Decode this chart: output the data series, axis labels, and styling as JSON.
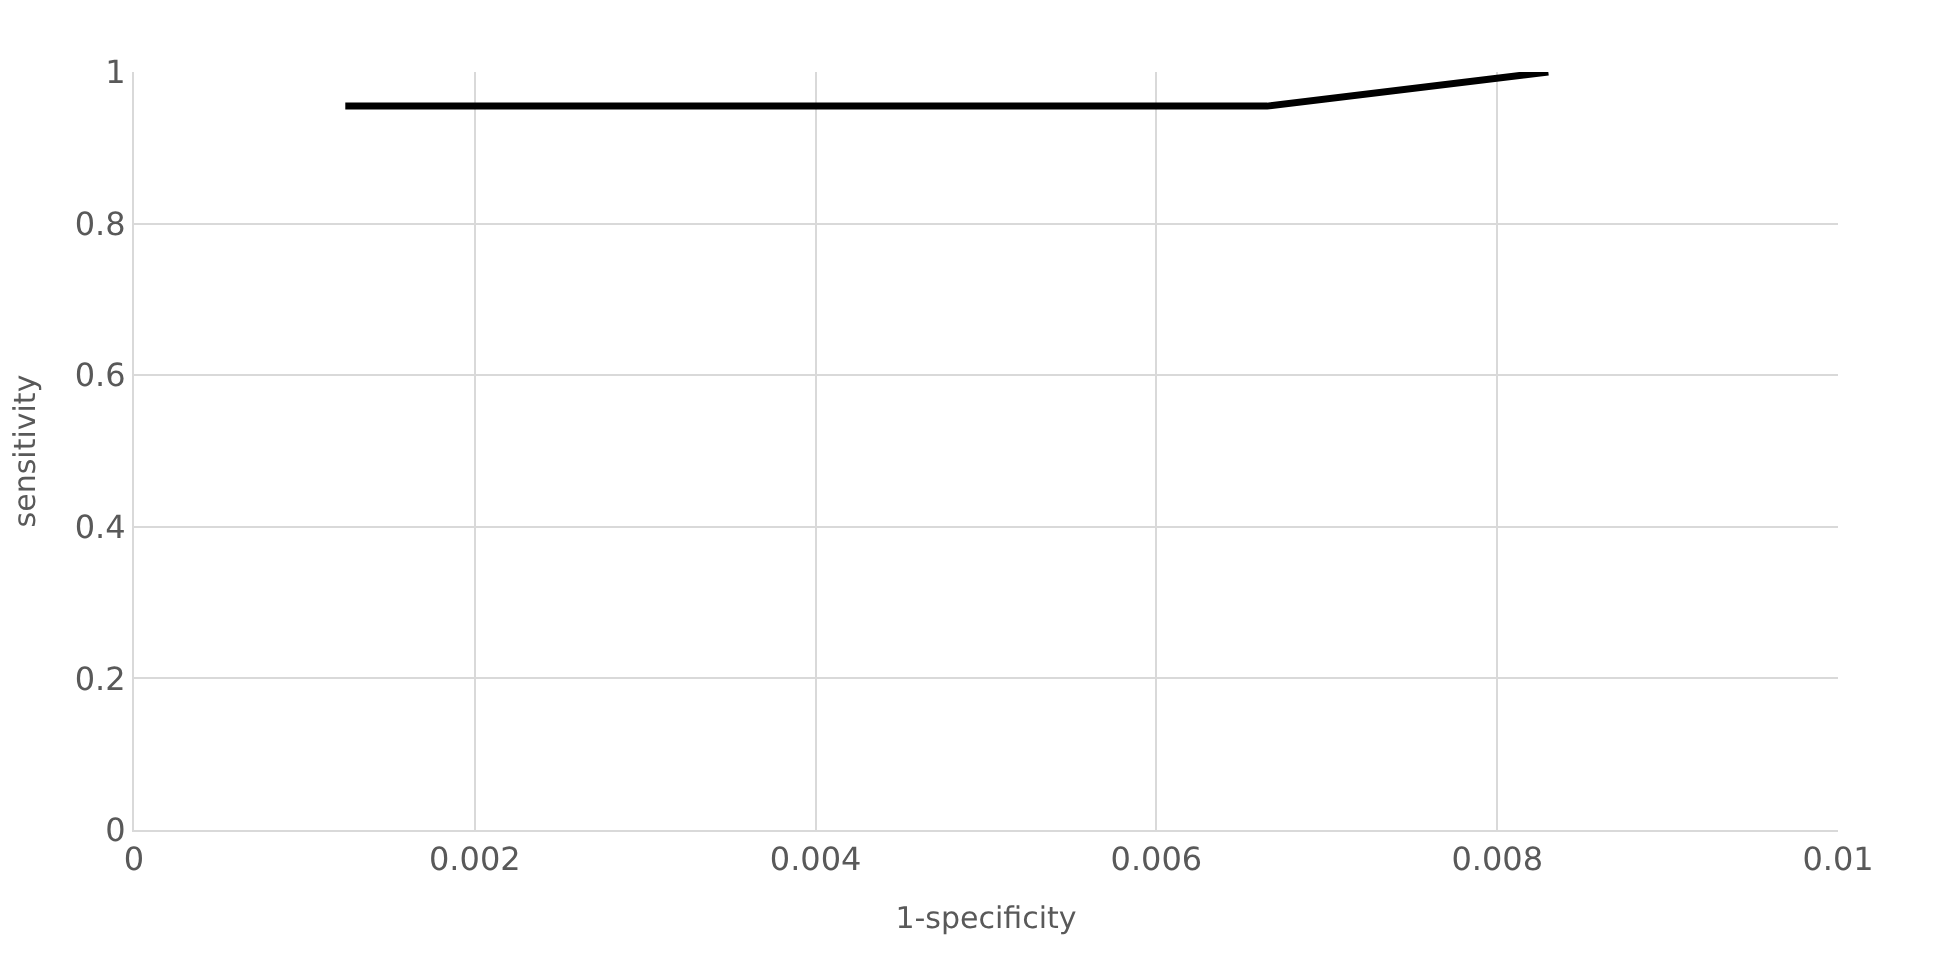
{
  "chart_data": {
    "type": "line",
    "xlabel": "1-specificity",
    "ylabel": "sensitivity",
    "x": [
      0.00124,
      0.00665,
      0.0083
    ],
    "series": [
      {
        "color": "#000000",
        "values": [
          0.955,
          0.955,
          1
        ]
      }
    ],
    "xlim": [
      0,
      0.01
    ],
    "xticks": [
      0,
      0.002,
      0.004,
      0.006,
      0.008,
      0.01
    ],
    "ylim": [
      0,
      1
    ],
    "yticks": [
      0,
      0.2,
      0.4,
      0.6,
      0.8,
      1
    ],
    "grid": true,
    "marker": "none",
    "line_style": "solid"
  }
}
